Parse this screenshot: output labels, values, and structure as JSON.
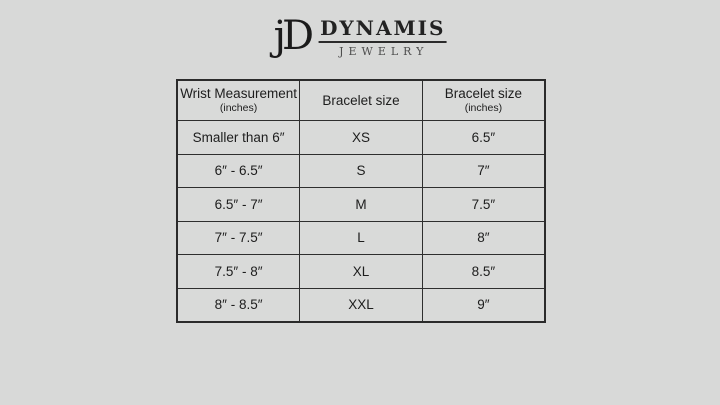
{
  "page": {
    "background_color": "#d8d9d8",
    "border_color": "#2e2e2e",
    "text_color": "#1d1d1d"
  },
  "logo": {
    "monogram": "jD",
    "brand_name": "DYNAMIS",
    "brand_subtitle": "JEWELRY"
  },
  "chart_data": {
    "type": "table",
    "title": "",
    "columns": [
      {
        "label": "Wrist Measurement",
        "sublabel": "(inches)"
      },
      {
        "label": "Bracelet size",
        "sublabel": ""
      },
      {
        "label": "Bracelet size",
        "sublabel": "(inches)"
      }
    ],
    "rows": [
      [
        "Smaller than 6″",
        "XS",
        "6.5″"
      ],
      [
        "6″ - 6.5″",
        "S",
        "7″"
      ],
      [
        "6.5″ - 7″",
        "M",
        "7.5″"
      ],
      [
        "7″ - 7.5″",
        "L",
        "8″"
      ],
      [
        "7.5″ - 8″",
        "XL",
        "8.5″"
      ],
      [
        "8″ - 8.5″",
        "XXL",
        "9″"
      ]
    ]
  }
}
